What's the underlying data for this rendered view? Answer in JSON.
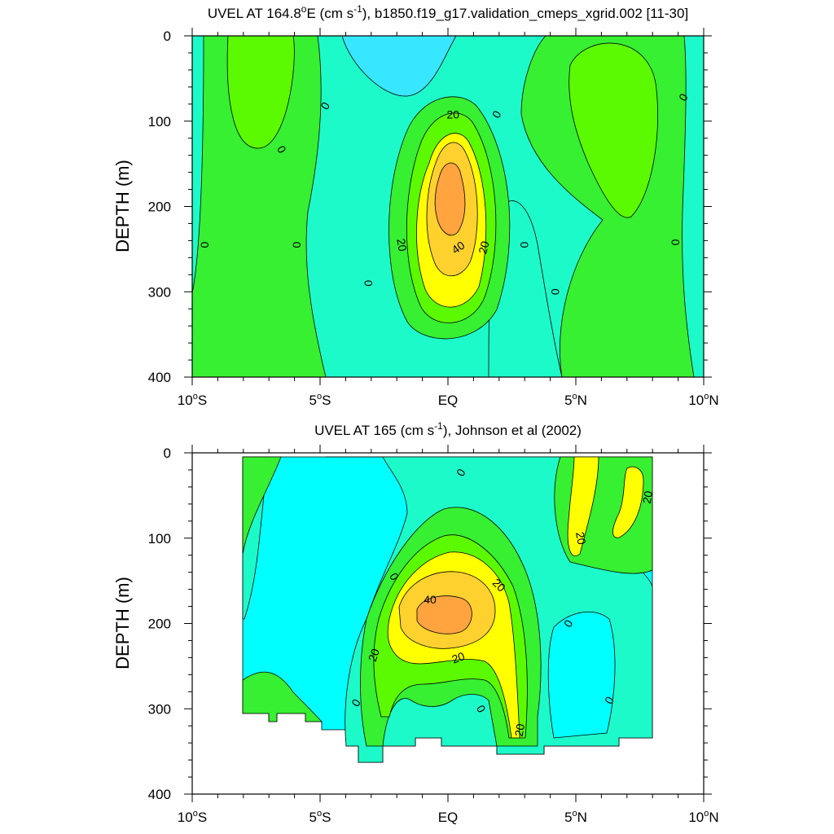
{
  "palette": {
    "lt_neg20": "#37e6ff",
    "neg20_0": "#00ffff",
    "neg_small": "#20f8d8",
    "0_10": "#1dfac9",
    "10_20": "#36f031",
    "20_30": "#5cfa00",
    "30_40": "#ffff00",
    "40_50": "#ffd12f",
    "gt50": "#ffa43f",
    "line": "#000000",
    "frame": "#000000"
  },
  "chart_data": [
    {
      "type": "contour",
      "title_main": "UVEL AT 164.8",
      "title_sup1": "o",
      "title_mid": "E (cm s",
      "title_sup2": "-1",
      "title_end": "), b1850.f19_g17.validation_cmeps_xgrid.002 [11-30]",
      "ylabel": "DEPTH (m)",
      "xlabel": "",
      "xlim": [
        -10,
        10
      ],
      "ylim": [
        400,
        0
      ],
      "x_ticks": [
        {
          "value": -10,
          "num": "10",
          "sup": "o",
          "suffix": "S"
        },
        {
          "value": -5,
          "num": "5",
          "sup": "o",
          "suffix": "S"
        },
        {
          "value": 0,
          "num": "EQ",
          "sup": "",
          "suffix": ""
        },
        {
          "value": 5,
          "num": "5",
          "sup": "o",
          "suffix": "N"
        },
        {
          "value": 10,
          "num": "10",
          "sup": "o",
          "suffix": "N"
        }
      ],
      "y_ticks": [
        0,
        100,
        200,
        300,
        400
      ],
      "contour_labels": [
        {
          "text": "20",
          "x": 0.2,
          "y": 92,
          "rot": 0
        },
        {
          "text": "0",
          "x": -6.5,
          "y": 133,
          "rot": 60
        },
        {
          "text": "0",
          "x": -4.8,
          "y": 82,
          "rot": -60
        },
        {
          "text": "0",
          "x": 1.9,
          "y": 92,
          "rot": -60
        },
        {
          "text": "0",
          "x": 9.2,
          "y": 72,
          "rot": -60
        },
        {
          "text": "0",
          "x": -9.5,
          "y": 245,
          "rot": 90
        },
        {
          "text": "0",
          "x": -5.9,
          "y": 245,
          "rot": 90
        },
        {
          "text": "0",
          "x": -3.1,
          "y": 290,
          "rot": 90
        },
        {
          "text": "0",
          "x": 3.0,
          "y": 245,
          "rot": 90
        },
        {
          "text": "0",
          "x": 4.2,
          "y": 300,
          "rot": 90
        },
        {
          "text": "0",
          "x": 8.9,
          "y": 242,
          "rot": 90
        },
        {
          "text": "20",
          "x": -1.8,
          "y": 245,
          "rot": 80
        },
        {
          "text": "40",
          "x": 0.4,
          "y": 248,
          "rot": -35
        },
        {
          "text": "20",
          "x": 1.4,
          "y": 248,
          "rot": -75
        }
      ]
    },
    {
      "type": "contour",
      "title_main": "UVEL AT 165 (cm s",
      "title_sup2": "-1",
      "title_end": "), Johnson et al (2002)",
      "ylabel": "DEPTH (m)",
      "xlabel": "",
      "xlim": [
        -10,
        10
      ],
      "ylim": [
        400,
        0
      ],
      "data_extent": {
        "x": [
          -8,
          8
        ],
        "y": [
          0,
          350
        ]
      },
      "x_ticks": [
        {
          "value": -10,
          "num": "10",
          "sup": "o",
          "suffix": "S"
        },
        {
          "value": -5,
          "num": "5",
          "sup": "o",
          "suffix": "S"
        },
        {
          "value": 0,
          "num": "EQ",
          "sup": "",
          "suffix": ""
        },
        {
          "value": 5,
          "num": "5",
          "sup": "o",
          "suffix": "N"
        },
        {
          "value": 10,
          "num": "10",
          "sup": "o",
          "suffix": "N"
        }
      ],
      "y_ticks": [
        0,
        100,
        200,
        300,
        400
      ],
      "contour_labels": [
        {
          "text": "0",
          "x": 0.5,
          "y": 23,
          "rot": -60
        },
        {
          "text": "20",
          "x": 7.8,
          "y": 52,
          "rot": -80
        },
        {
          "text": "20",
          "x": 5.2,
          "y": 100,
          "rot": 80
        },
        {
          "text": "0",
          "x": -2.1,
          "y": 145,
          "rot": 60
        },
        {
          "text": "20",
          "x": 2.0,
          "y": 155,
          "rot": 45
        },
        {
          "text": "40",
          "x": -0.7,
          "y": 172,
          "rot": 0
        },
        {
          "text": "0",
          "x": 4.7,
          "y": 200,
          "rot": -60
        },
        {
          "text": "20",
          "x": -2.9,
          "y": 237,
          "rot": -70
        },
        {
          "text": "20",
          "x": 0.4,
          "y": 240,
          "rot": -20
        },
        {
          "text": "0",
          "x": -3.6,
          "y": 293,
          "rot": -60
        },
        {
          "text": "0",
          "x": 1.3,
          "y": 300,
          "rot": 60
        },
        {
          "text": "0",
          "x": 6.3,
          "y": 290,
          "rot": -60
        },
        {
          "text": "20",
          "x": 2.8,
          "y": 325,
          "rot": -80
        }
      ]
    }
  ]
}
